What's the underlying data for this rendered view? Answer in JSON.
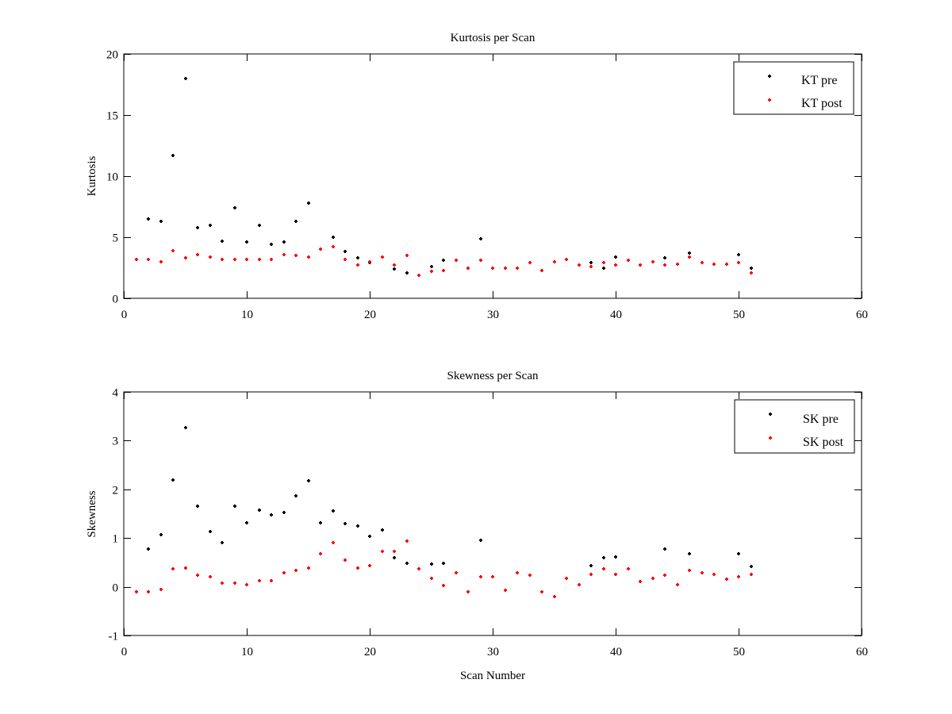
{
  "chart_data": [
    {
      "type": "scatter",
      "title": "Kurtosis per Scan",
      "xlabel": "",
      "ylabel": "Kurtosis",
      "xlim": [
        0,
        60
      ],
      "ylim": [
        0,
        20
      ],
      "xticks": [
        0,
        10,
        20,
        30,
        40,
        50,
        60
      ],
      "yticks": [
        0,
        5,
        10,
        15,
        20
      ],
      "grid": false,
      "legend_position": "top-right",
      "series": [
        {
          "name": "KT pre",
          "color": "#000000",
          "x": [
            2,
            3,
            4,
            5,
            6,
            7,
            8,
            9,
            10,
            11,
            12,
            13,
            14,
            15,
            16,
            17,
            18,
            19,
            20,
            22,
            23,
            25,
            26,
            29,
            36,
            38,
            39,
            40,
            44,
            46,
            50,
            51
          ],
          "y": [
            6.5,
            6.3,
            11.7,
            18.0,
            5.8,
            6.0,
            4.7,
            7.4,
            4.6,
            6.0,
            4.4,
            4.6,
            6.3,
            7.8,
            4.0,
            5.0,
            3.8,
            3.3,
            2.9,
            2.4,
            2.1,
            2.6,
            3.1,
            4.9,
            3.2,
            2.9,
            2.5,
            3.4,
            3.3,
            3.7,
            3.6,
            2.5
          ]
        },
        {
          "name": "KT post",
          "color": "#ff0000",
          "x": [
            1,
            2,
            3,
            4,
            5,
            6,
            7,
            8,
            9,
            10,
            11,
            12,
            13,
            14,
            15,
            16,
            17,
            18,
            19,
            20,
            21,
            22,
            23,
            24,
            25,
            26,
            27,
            28,
            29,
            30,
            31,
            32,
            33,
            34,
            35,
            36,
            37,
            38,
            39,
            40,
            41,
            42,
            43,
            44,
            45,
            46,
            47,
            48,
            49,
            50,
            51
          ],
          "y": [
            3.2,
            3.2,
            3.0,
            3.9,
            3.3,
            3.6,
            3.4,
            3.2,
            3.2,
            3.2,
            3.2,
            3.2,
            3.6,
            3.5,
            3.4,
            4.0,
            4.2,
            3.2,
            2.7,
            3.0,
            3.4,
            2.7,
            3.5,
            1.9,
            2.2,
            2.3,
            3.1,
            2.5,
            3.1,
            2.5,
            2.5,
            2.5,
            2.9,
            2.3,
            3.0,
            3.2,
            2.7,
            2.6,
            2.9,
            2.7,
            3.1,
            2.7,
            3.0,
            2.7,
            2.8,
            3.4,
            2.9,
            2.8,
            2.8,
            2.9,
            2.1
          ]
        }
      ]
    },
    {
      "type": "scatter",
      "title": "Skewness per Scan",
      "xlabel": "Scan Number",
      "ylabel": "Skewness",
      "xlim": [
        0,
        60
      ],
      "ylim": [
        -1,
        4
      ],
      "xticks": [
        0,
        10,
        20,
        30,
        40,
        50,
        60
      ],
      "yticks": [
        -1,
        0,
        1,
        2,
        3,
        4
      ],
      "grid": false,
      "legend_position": "top-right",
      "series": [
        {
          "name": "SK pre",
          "color": "#000000",
          "x": [
            2,
            3,
            4,
            5,
            6,
            7,
            8,
            9,
            10,
            11,
            12,
            13,
            14,
            15,
            16,
            17,
            18,
            19,
            20,
            21,
            22,
            23,
            25,
            26,
            29,
            38,
            39,
            40,
            44,
            46,
            50,
            51
          ],
          "y": [
            0.78,
            1.07,
            2.2,
            3.26,
            1.65,
            1.14,
            0.9,
            1.65,
            1.32,
            1.58,
            1.48,
            1.53,
            1.86,
            2.17,
            1.32,
            1.56,
            1.29,
            1.24,
            1.03,
            1.16,
            0.59,
            0.49,
            0.46,
            0.49,
            0.95,
            0.44,
            0.59,
            0.62,
            0.78,
            0.68,
            0.67,
            0.41
          ]
        },
        {
          "name": "SK post",
          "color": "#ff0000",
          "x": [
            1,
            2,
            3,
            4,
            5,
            6,
            7,
            8,
            9,
            10,
            11,
            12,
            13,
            14,
            15,
            16,
            17,
            18,
            19,
            20,
            21,
            22,
            23,
            24,
            25,
            26,
            27,
            28,
            29,
            30,
            31,
            32,
            33,
            34,
            35,
            36,
            37,
            38,
            39,
            40,
            41,
            42,
            43,
            44,
            45,
            46,
            47,
            48,
            49,
            50,
            51
          ],
          "y": [
            -0.11,
            -0.1,
            -0.05,
            0.36,
            0.39,
            0.23,
            0.2,
            0.08,
            0.08,
            0.05,
            0.13,
            0.13,
            0.29,
            0.33,
            0.39,
            0.67,
            0.91,
            0.55,
            0.39,
            0.44,
            0.72,
            0.72,
            0.93,
            0.37,
            0.18,
            0.03,
            0.28,
            -0.1,
            0.21,
            0.21,
            -0.07,
            0.28,
            0.23,
            -0.1,
            -0.2,
            0.18,
            0.05,
            0.26,
            0.37,
            0.26,
            0.36,
            0.11,
            0.18,
            0.24,
            0.05,
            0.34,
            0.28,
            0.26,
            0.16,
            0.21,
            0.26
          ]
        }
      ]
    }
  ]
}
